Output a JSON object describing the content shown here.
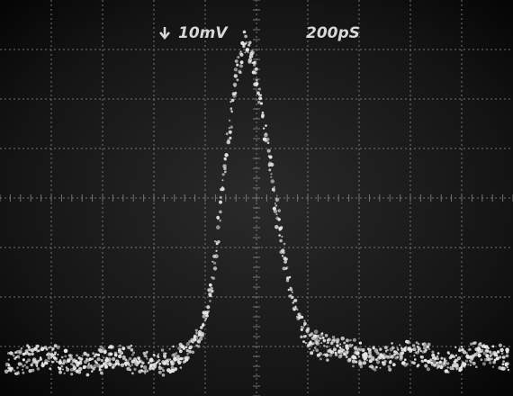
{
  "scope": {
    "vertical_scale": "10mV",
    "time_scale": "200pS"
  }
}
